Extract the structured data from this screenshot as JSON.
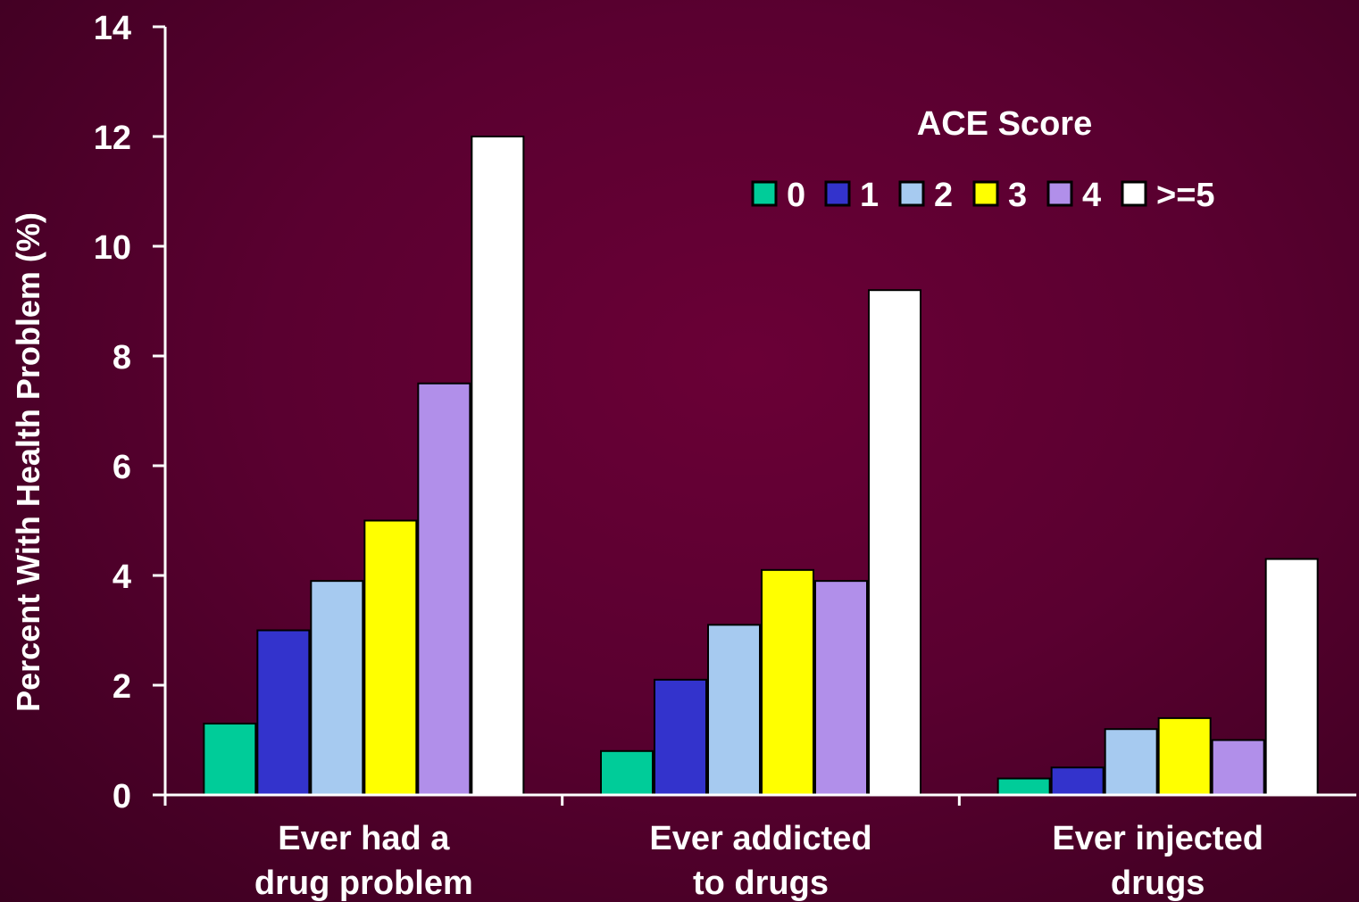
{
  "chart_data": {
    "type": "bar",
    "ylabel": "Percent With Health Problem  (%)",
    "ylim": [
      0,
      14
    ],
    "yticks": [
      "0",
      "2",
      "4",
      "6",
      "8",
      "10",
      "12",
      "14"
    ],
    "categories": [
      [
        "Ever had a",
        "drug problem"
      ],
      [
        "Ever addicted",
        "to drugs"
      ],
      [
        "Ever injected",
        "drugs"
      ]
    ],
    "legend": {
      "title": "ACE Score",
      "placement": "top-right"
    },
    "series": [
      {
        "name": "0",
        "color": "#00cc99",
        "values": [
          1.3,
          0.8,
          0.3
        ]
      },
      {
        "name": "1",
        "color": "#3333cc",
        "values": [
          3.0,
          2.1,
          0.5
        ]
      },
      {
        "name": "2",
        "color": "#a6caf0",
        "values": [
          3.9,
          3.1,
          1.2
        ]
      },
      {
        "name": "3",
        "color": "#ffff00",
        "values": [
          5.0,
          4.1,
          1.4
        ]
      },
      {
        "name": "4",
        "color": "#b18fea",
        "values": [
          7.5,
          3.9,
          1.0
        ]
      },
      {
        "name": ">=5",
        "color": "#ffffff",
        "values": [
          12.0,
          9.2,
          4.3
        ]
      }
    ]
  }
}
